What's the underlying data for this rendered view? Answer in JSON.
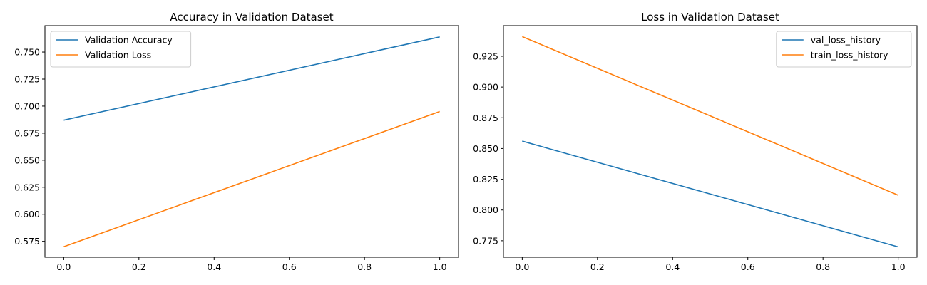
{
  "chart_data": [
    {
      "type": "line",
      "title": "Accuracy in Validation Dataset",
      "xlabel": "",
      "ylabel": "",
      "xlim": [
        -0.05,
        1.05
      ],
      "ylim": [
        0.5603,
        0.7744
      ],
      "xticks": [
        0.0,
        0.2,
        0.4,
        0.6,
        0.8,
        1.0
      ],
      "xtick_labels": [
        "0.0",
        "0.2",
        "0.4",
        "0.6",
        "0.8",
        "1.0"
      ],
      "yticks": [
        0.575,
        0.6,
        0.625,
        0.65,
        0.675,
        0.7,
        0.725,
        0.75
      ],
      "ytick_labels": [
        "0.575",
        "0.600",
        "0.625",
        "0.650",
        "0.675",
        "0.700",
        "0.725",
        "0.750"
      ],
      "grid": false,
      "legend_position": "top-left",
      "series": [
        {
          "name": "Validation Accuracy",
          "color": "#1f77b4",
          "x": [
            0,
            1
          ],
          "y": [
            0.687,
            0.764
          ]
        },
        {
          "name": "Validation Loss",
          "color": "#ff7f0e",
          "x": [
            0,
            1
          ],
          "y": [
            0.57,
            0.695
          ]
        }
      ]
    },
    {
      "type": "line",
      "title": "Loss in Validation Dataset",
      "xlabel": "",
      "ylabel": "",
      "xlim": [
        -0.05,
        1.05
      ],
      "ylim": [
        0.7616,
        0.9499
      ],
      "xticks": [
        0.0,
        0.2,
        0.4,
        0.6,
        0.8,
        1.0
      ],
      "xtick_labels": [
        "0.0",
        "0.2",
        "0.4",
        "0.6",
        "0.8",
        "1.0"
      ],
      "yticks": [
        0.775,
        0.8,
        0.825,
        0.85,
        0.875,
        0.9,
        0.925
      ],
      "ytick_labels": [
        "0.775",
        "0.800",
        "0.825",
        "0.850",
        "0.875",
        "0.900",
        "0.925"
      ],
      "grid": false,
      "legend_position": "top-right",
      "series": [
        {
          "name": "val_loss_history",
          "color": "#1f77b4",
          "x": [
            0,
            1
          ],
          "y": [
            0.856,
            0.77
          ]
        },
        {
          "name": "train_loss_history",
          "color": "#ff7f0e",
          "x": [
            0,
            1
          ],
          "y": [
            0.941,
            0.812
          ]
        }
      ]
    }
  ]
}
